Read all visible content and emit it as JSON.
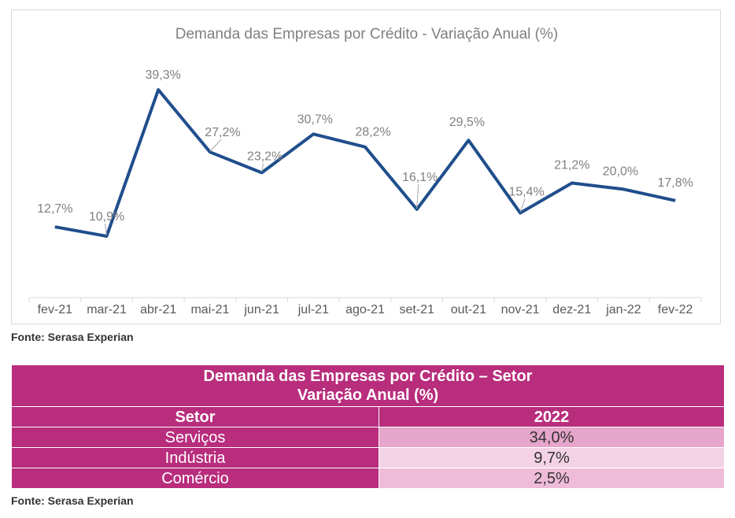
{
  "chart_data": {
    "type": "line",
    "title": "Demanda das Empresas por Crédito - Variação Anual (%)",
    "categories": [
      "fev-21",
      "mar-21",
      "abr-21",
      "mai-21",
      "jun-21",
      "jul-21",
      "ago-21",
      "set-21",
      "out-21",
      "nov-21",
      "dez-21",
      "jan-22",
      "fev-22"
    ],
    "series": [
      {
        "values": [
          12.7,
          10.9,
          39.3,
          27.2,
          23.2,
          30.7,
          28.2,
          16.1,
          29.5,
          15.4,
          21.2,
          20.0,
          17.8
        ],
        "labels": [
          "12,7%",
          "10,9%",
          "39,3%",
          "27,2%",
          "23,2%",
          "30,7%",
          "28,2%",
          "16,1%",
          "29,5%",
          "15,4%",
          "21,2%",
          "20,0%",
          "17,8%"
        ],
        "color": "#1f4e8c"
      }
    ],
    "ylim": [
      0,
      45
    ],
    "grid": false,
    "legend": "none"
  },
  "chart_source": "Fonte: Serasa Experian",
  "table": {
    "title_line1": "Demanda das Empresas por Crédito – Setor",
    "title_line2": "Variação Anual (%)",
    "header": {
      "col1": "Setor",
      "col2": "2022"
    },
    "rows": [
      {
        "sector": "Serviços",
        "value": "34,0%",
        "color": "#e6a5cb"
      },
      {
        "sector": "Indústria",
        "value": "9,7%",
        "color": "#f4d2e5"
      },
      {
        "sector": "Comércio",
        "value": "2,5%",
        "color": "#eebbd8"
      }
    ]
  },
  "table_source": "Fonte: Serasa Experian",
  "colors": {
    "line": "#1f4e8c",
    "table_primary": "#b82d7c",
    "text_gray": "#808080"
  }
}
